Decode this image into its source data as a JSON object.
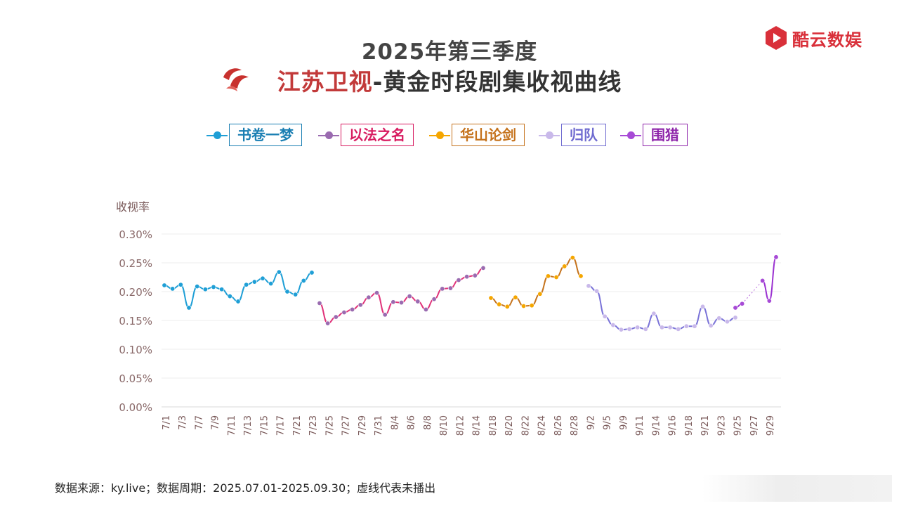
{
  "header": {
    "title_line1": "2025年第三季度",
    "channel_name": "江苏卫视",
    "title_rest": "-黄金时段剧集收视曲线",
    "brand_name": "酷云数娱",
    "brand_icon": "kuyun-logo-icon",
    "channel_icon": "jiangsu-tv-logo-icon"
  },
  "legend": [
    {
      "label": "书卷一梦",
      "color": "#1f9fd6",
      "text_color": "#1b7fb3"
    },
    {
      "label": "以法之名",
      "color": "#9a6bb0",
      "text_color": "#d81b60"
    },
    {
      "label": "华山论剑",
      "color": "#f5a600",
      "text_color": "#c5731d"
    },
    {
      "label": "归队",
      "color": "#c9b9ea",
      "text_color": "#6f6bd0"
    },
    {
      "label": "围猎",
      "color": "#a74ad6",
      "text_color": "#8e24aa"
    }
  ],
  "footer": {
    "text": "数据来源：ky.live；数据周期：2025.07.01-2025.09.30；虚线代表未播出"
  },
  "chart_data": {
    "type": "line",
    "title": "2025年第三季度 江苏卫视-黄金时段剧集收视曲线",
    "ylabel": "收视率",
    "xlabel": "",
    "ylim": [
      0,
      0.3
    ],
    "y_ticks": [
      "0.00%",
      "0.05%",
      "0.10%",
      "0.15%",
      "0.20%",
      "0.25%",
      "0.30%"
    ],
    "x_ticks": [
      "7/1",
      "7/3",
      "7/7",
      "7/9",
      "7/11",
      "7/13",
      "7/15",
      "7/17",
      "7/21",
      "7/23",
      "7/25",
      "7/27",
      "7/29",
      "7/31",
      "8/4",
      "8/6",
      "8/8",
      "8/10",
      "8/12",
      "8/14",
      "8/18",
      "8/20",
      "8/22",
      "8/24",
      "8/26",
      "8/28",
      "9/2",
      "9/5",
      "9/9",
      "9/11",
      "9/14",
      "9/16",
      "9/18",
      "9/21",
      "9/23",
      "9/25",
      "9/27",
      "9/29"
    ],
    "grid": true,
    "series": [
      {
        "name": "书卷一梦",
        "color": "#1f9fd6",
        "line_color": "#1f9fd6",
        "values": [
          0.211,
          0.205,
          0.212,
          0.172,
          0.209,
          0.204,
          0.208,
          0.204,
          0.192,
          0.183,
          0.212,
          0.217,
          0.223,
          0.214,
          0.234,
          0.2,
          0.195,
          0.219,
          0.233
        ]
      },
      {
        "name": "以法之名",
        "color": "#9a6bb0",
        "line_color": "#e0337a",
        "values": [
          0.18,
          0.145,
          0.156,
          0.164,
          0.169,
          0.177,
          0.19,
          0.198,
          0.16,
          0.182,
          0.181,
          0.192,
          0.183,
          0.169,
          0.187,
          0.205,
          0.206,
          0.22,
          0.226,
          0.228,
          0.241
        ]
      },
      {
        "name": "华山论剑",
        "color": "#f5a600",
        "line_color": "#c5731d",
        "values": [
          0.189,
          0.178,
          0.174,
          0.19,
          0.175,
          0.176,
          0.196,
          0.227,
          0.225,
          0.244,
          0.259,
          0.227
        ]
      },
      {
        "name": "归队",
        "color": "#c9b9ea",
        "line_color": "#7a73d8",
        "values": [
          0.21,
          0.201,
          0.157,
          0.142,
          0.134,
          0.135,
          0.138,
          0.135,
          0.162,
          0.138,
          0.138,
          0.135,
          0.14,
          0.14,
          0.174,
          0.141,
          0.154,
          0.148,
          0.155
        ]
      },
      {
        "name": "围猎",
        "color": "#a74ad6",
        "line_color": "#9b32d1",
        "values": [
          0.172,
          0.179,
          null,
          null,
          0.219,
          0.184,
          0.26
        ]
      }
    ]
  }
}
